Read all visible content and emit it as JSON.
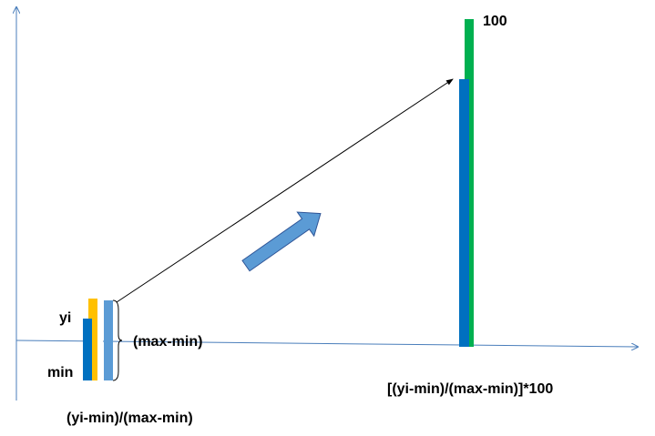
{
  "labels": {
    "yi": "yi",
    "min": "min",
    "range": "(max-min)",
    "normalized": "(yi-min)/(max-min)",
    "top": "100",
    "scaled": "[(yi-min)/(max-min)]*100"
  }
}
